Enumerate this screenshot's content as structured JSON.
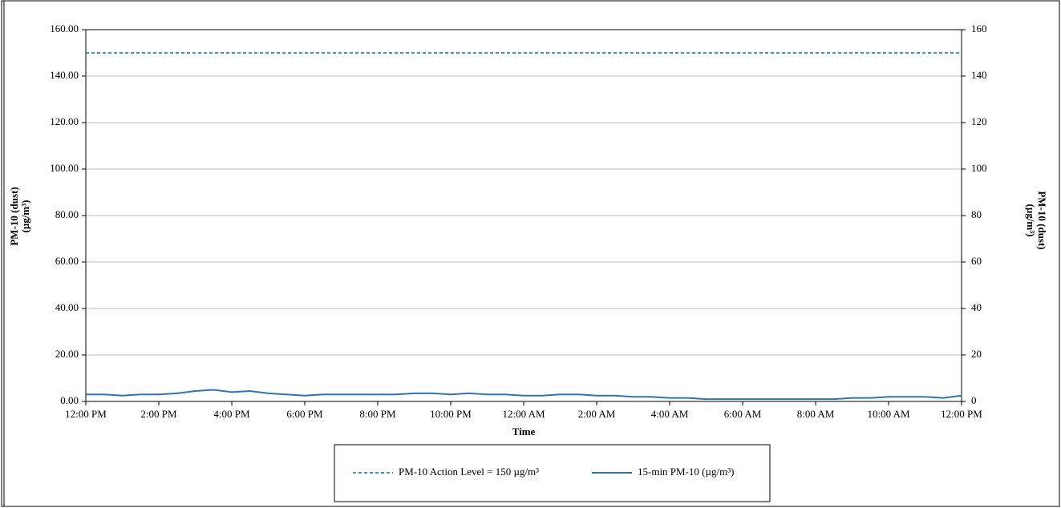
{
  "chart_data": {
    "type": "line",
    "x_label": "Time",
    "y_label": [
      "PM-10 (dust)",
      "(µg/m³)"
    ],
    "y2_label": [
      "PM-10 (dust)",
      "(µg/m³)"
    ],
    "xlim": [
      0,
      24
    ],
    "xticks": [
      {
        "value": 0,
        "label": "12:00 PM"
      },
      {
        "value": 2,
        "label": "2:00 PM"
      },
      {
        "value": 4,
        "label": "4:00 PM"
      },
      {
        "value": 6,
        "label": "6:00 PM"
      },
      {
        "value": 8,
        "label": "8:00 PM"
      },
      {
        "value": 10,
        "label": "10:00 PM"
      },
      {
        "value": 12,
        "label": "12:00 AM"
      },
      {
        "value": 14,
        "label": "2:00 AM"
      },
      {
        "value": 16,
        "label": "4:00 AM"
      },
      {
        "value": 18,
        "label": "6:00 AM"
      },
      {
        "value": 20,
        "label": "8:00 AM"
      },
      {
        "value": 22,
        "label": "10:00 AM"
      },
      {
        "value": 24,
        "label": "12:00 PM"
      }
    ],
    "ylim": [
      0,
      160
    ],
    "yticks": [
      {
        "value": 0,
        "label": "0.00"
      },
      {
        "value": 20,
        "label": "20.00"
      },
      {
        "value": 40,
        "label": "40.00"
      },
      {
        "value": 60,
        "label": "60.00"
      },
      {
        "value": 80,
        "label": "80.00"
      },
      {
        "value": 100,
        "label": "100.00"
      },
      {
        "value": 120,
        "label": "120.00"
      },
      {
        "value": 140,
        "label": "140.00"
      },
      {
        "value": 160,
        "label": "160.00"
      }
    ],
    "y2lim": [
      0,
      160
    ],
    "y2ticks": [
      0,
      20,
      40,
      60,
      80,
      100,
      120,
      140,
      160
    ],
    "grid": true,
    "reference_line": {
      "name": "PM-10 Action Level = 150 µg/m³",
      "value": 150,
      "color": "#0070c0",
      "dashed": true
    },
    "x": [
      0,
      0.5,
      1,
      1.5,
      2,
      2.5,
      3,
      3.5,
      4,
      4.5,
      5,
      5.5,
      6,
      6.5,
      7,
      7.5,
      8,
      8.5,
      9,
      9.5,
      10,
      10.5,
      11,
      11.5,
      12,
      12.5,
      13,
      13.5,
      14,
      14.5,
      15,
      15.5,
      16,
      16.5,
      17,
      17.5,
      18,
      18.5,
      19,
      19.5,
      20,
      20.5,
      21,
      21.5,
      22,
      22.5,
      23,
      23.5,
      24
    ],
    "series": [
      {
        "name": "15-min PM-10 (µg/m³)",
        "color": "#2e75b6",
        "values": [
          3.0,
          3.0,
          2.5,
          3.0,
          3.0,
          3.5,
          4.5,
          5.0,
          4.0,
          4.5,
          3.5,
          3.0,
          2.5,
          3.0,
          3.0,
          3.0,
          3.0,
          3.0,
          3.5,
          3.5,
          3.0,
          3.5,
          3.0,
          3.0,
          2.5,
          2.5,
          3.0,
          3.0,
          2.5,
          2.5,
          2.0,
          2.0,
          1.5,
          1.5,
          1.0,
          1.0,
          1.0,
          1.0,
          1.0,
          1.0,
          1.0,
          1.0,
          1.5,
          1.5,
          2.0,
          2.0,
          2.0,
          1.5,
          2.5
        ]
      }
    ]
  }
}
